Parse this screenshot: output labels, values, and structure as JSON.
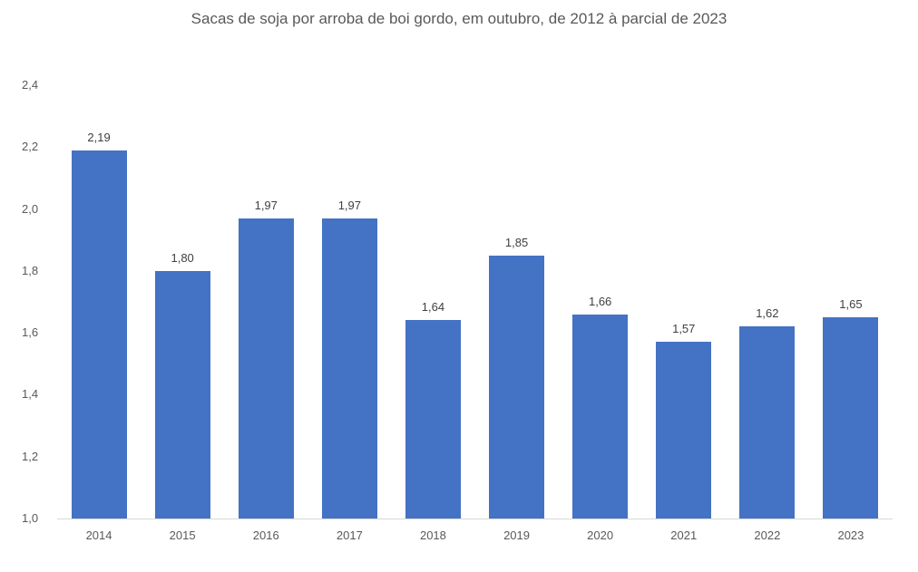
{
  "title": "Sacas de soja por arroba de boi gordo, em outubro, de 2012 à parcial de 2023",
  "colors": {
    "bar": "#4472c4",
    "axis": "#d9d9d9",
    "text": "#595959"
  },
  "chart_data": {
    "type": "bar",
    "title": "Sacas de soja por arroba de boi gordo, em outubro, de 2012 à parcial de 2023",
    "xlabel": "",
    "ylabel": "",
    "categories": [
      "2014",
      "2015",
      "2016",
      "2017",
      "2018",
      "2019",
      "2020",
      "2021",
      "2022",
      "2023"
    ],
    "values": [
      2.19,
      1.8,
      1.97,
      1.97,
      1.64,
      1.85,
      1.66,
      1.57,
      1.62,
      1.65
    ],
    "value_labels": [
      "2,19",
      "1,80",
      "1,97",
      "1,97",
      "1,64",
      "1,85",
      "1,66",
      "1,57",
      "1,62",
      "1,65"
    ],
    "ylim": [
      1.0,
      2.4
    ],
    "yticks": [
      1.0,
      1.2,
      1.4,
      1.6,
      1.8,
      2.0,
      2.2,
      2.4
    ],
    "ytick_labels": [
      "1,0",
      "1,2",
      "1,4",
      "1,6",
      "1,8",
      "2,0",
      "2,2",
      "2,4"
    ],
    "grid": false,
    "legend": null
  }
}
